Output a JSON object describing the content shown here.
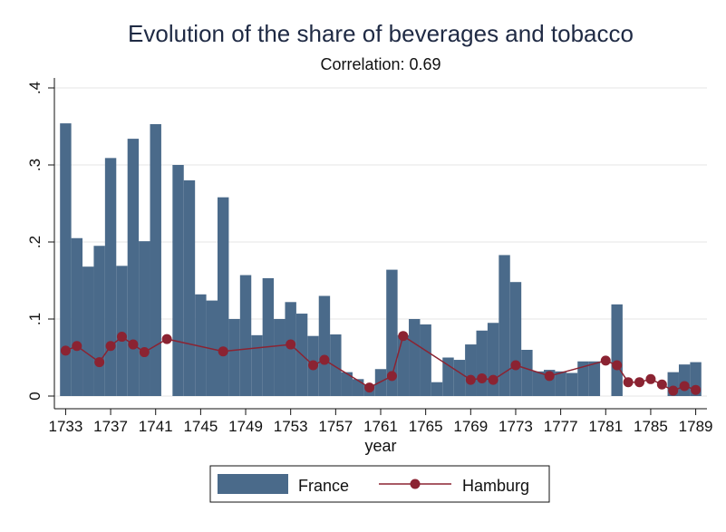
{
  "chart_data": {
    "type": "bar",
    "title": "Evolution of the share of beverages and tobacco",
    "subtitle": "Correlation: 0.69",
    "xlabel": "year",
    "ylabel": "",
    "xlim": [
      1732,
      1790
    ],
    "ylim": [
      0,
      0.4
    ],
    "x_ticks": [
      1733,
      1737,
      1741,
      1745,
      1749,
      1753,
      1757,
      1761,
      1765,
      1769,
      1773,
      1777,
      1781,
      1785,
      1789
    ],
    "y_ticks": [
      0,
      0.1,
      0.2,
      0.3,
      0.4
    ],
    "y_tick_labels": [
      "0",
      ".1",
      ".2",
      ".3",
      ".4"
    ],
    "grid": true,
    "legend_position": "bottom",
    "series": [
      {
        "name": "France",
        "type": "bar",
        "color": "#4a6a8a",
        "x": [
          1733,
          1734,
          1735,
          1736,
          1737,
          1738,
          1739,
          1740,
          1741,
          1743,
          1744,
          1745,
          1746,
          1747,
          1748,
          1749,
          1750,
          1751,
          1752,
          1753,
          1754,
          1755,
          1756,
          1757,
          1758,
          1759,
          1760,
          1761,
          1762,
          1763,
          1764,
          1765,
          1766,
          1767,
          1768,
          1769,
          1770,
          1771,
          1772,
          1773,
          1774,
          1775,
          1776,
          1777,
          1778,
          1779,
          1780,
          1782,
          1787,
          1788,
          1789
        ],
        "values": [
          0.354,
          0.205,
          0.168,
          0.195,
          0.309,
          0.169,
          0.334,
          0.201,
          0.353,
          0.3,
          0.28,
          0.132,
          0.124,
          0.258,
          0.1,
          0.157,
          0.079,
          0.153,
          0.1,
          0.122,
          0.107,
          0.078,
          0.13,
          0.08,
          0.031,
          0.022,
          0.015,
          0.035,
          0.164,
          0.079,
          0.1,
          0.093,
          0.018,
          0.05,
          0.047,
          0.067,
          0.085,
          0.095,
          0.183,
          0.148,
          0.06,
          0.032,
          0.034,
          0.032,
          0.03,
          0.045,
          0.045,
          0.119,
          0.031,
          0.041,
          0.044
        ]
      },
      {
        "name": "Hamburg",
        "type": "line",
        "color": "#8b2332",
        "x": [
          1733,
          1734,
          1736,
          1737,
          1738,
          1739,
          1740,
          1742,
          1747,
          1753,
          1755,
          1756,
          1760,
          1762,
          1763,
          1769,
          1770,
          1771,
          1773,
          1776,
          1781,
          1782,
          1783,
          1784,
          1785,
          1786,
          1787,
          1788,
          1789
        ],
        "values": [
          0.059,
          0.065,
          0.044,
          0.065,
          0.077,
          0.067,
          0.057,
          0.074,
          0.058,
          0.067,
          0.04,
          0.047,
          0.011,
          0.026,
          0.078,
          0.021,
          0.023,
          0.021,
          0.04,
          0.026,
          0.046,
          0.04,
          0.018,
          0.018,
          0.022,
          0.015,
          0.007,
          0.013,
          0.008
        ]
      }
    ]
  }
}
